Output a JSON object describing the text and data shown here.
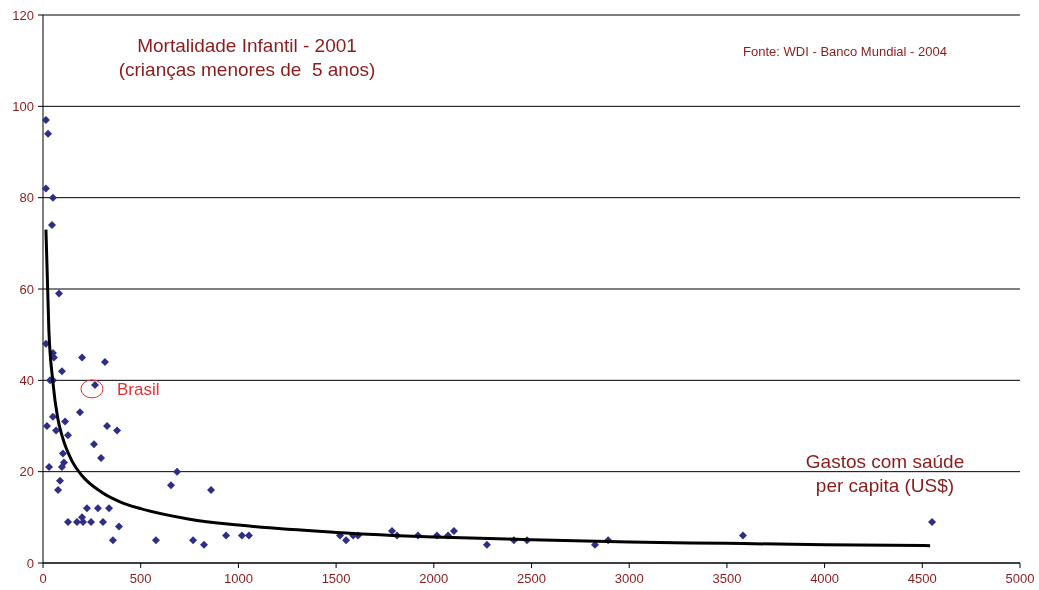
{
  "chart_data": {
    "type": "scatter",
    "title": "Mortalidade Infantil - 2001",
    "subtitle": "(crianças menores de  5 anos)",
    "xlabel": "Gastos com saúde per capita (US$)",
    "annotations": [
      "Fonte: WDI - Banco Mundial - 2004",
      {
        "text": "Brasil",
        "x": 266,
        "y": 39
      }
    ],
    "xlim": [
      0,
      5000
    ],
    "xticks": [
      0,
      500,
      1000,
      1500,
      2000,
      2500,
      3000,
      3500,
      4000,
      4500,
      5000
    ],
    "ylim": [
      0,
      120
    ],
    "yticks": [
      0,
      20,
      40,
      60,
      80,
      100,
      120
    ],
    "grid": "y",
    "marker": "diamond",
    "series": [
      {
        "color": "#2e2e86",
        "x": [
          15,
          26,
          15,
          51,
          46,
          82,
          15,
          51,
          56,
          200,
          317,
          97,
          36,
          51,
          266,
          189,
          51,
          113,
          20,
          67,
          128,
          328,
          379,
          261,
          297,
          102,
          107,
          97,
          31,
          87,
          77,
          686,
          655,
          860,
          225,
          281,
          338,
          200,
          128,
          174,
          205,
          246,
          307,
          389,
          358,
          578,
          768,
          824,
          937,
          1018,
          1054,
          1520,
          1551,
          1587,
          1612,
          1786,
          1812,
          1919,
          2016,
          2073,
          2103,
          2272,
          2410,
          2477,
          2825,
          2892,
          3582,
          4550
        ],
        "values": [
          97,
          94,
          82,
          80,
          74,
          59,
          48,
          46,
          45,
          45,
          44,
          42,
          40,
          40,
          39,
          33,
          32,
          31,
          30,
          29,
          28,
          30,
          29,
          26,
          23,
          24,
          22,
          21,
          21,
          18,
          16,
          20,
          17,
          16,
          12,
          12,
          12,
          10,
          9,
          9,
          9,
          9,
          9,
          8,
          5,
          5,
          5,
          4,
          6,
          6,
          6,
          6,
          5,
          6,
          6,
          7,
          6,
          6,
          6,
          6,
          7,
          4,
          5,
          5,
          4,
          5,
          6,
          9
        ]
      },
      {
        "type": "line",
        "color": "#000000",
        "marker": "none",
        "x": [
          15,
          30,
          50,
          75,
          100,
          150,
          200,
          300,
          400,
          500,
          750,
          1000,
          1500,
          2000,
          2500,
          3000,
          3500,
          4000,
          4540
        ],
        "values": [
          73,
          51,
          39.9,
          31.8,
          27.5,
          22.2,
          19.1,
          15.5,
          13.3,
          11.9,
          9.6,
          8.3,
          6.7,
          5.7,
          5.1,
          4.6,
          4.3,
          4.0,
          3.8
        ]
      }
    ]
  }
}
